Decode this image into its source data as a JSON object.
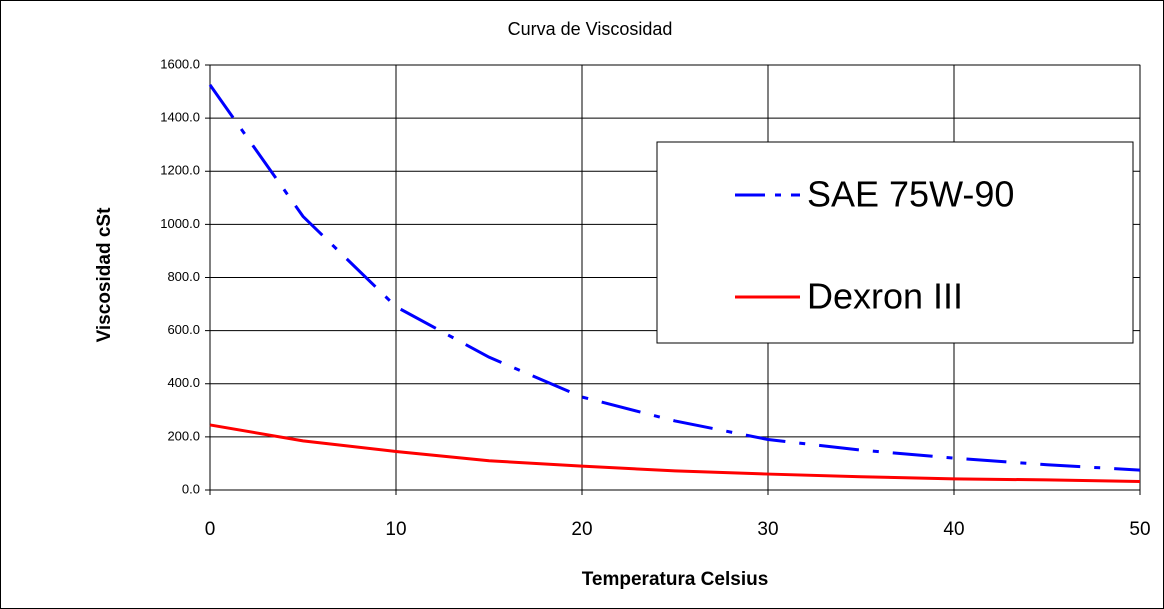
{
  "chart_data": {
    "type": "line",
    "title": "Curva de Viscosidad",
    "x_label": "Temperatura Celsius",
    "y_label": "Viscosidad cSt",
    "x": [
      0,
      5,
      10,
      15,
      20,
      25,
      30,
      35,
      40,
      45,
      50
    ],
    "series": [
      {
        "name": "SAE 75W-90",
        "color": "#0000ff",
        "dash": true,
        "values": [
          1525,
          1030,
          690,
          500,
          350,
          260,
          190,
          150,
          120,
          95,
          75
        ]
      },
      {
        "name": "Dexron III",
        "color": "#ff0000",
        "dash": false,
        "values": [
          245,
          185,
          145,
          110,
          90,
          72,
          60,
          50,
          42,
          38,
          32
        ]
      }
    ],
    "xlim": [
      0,
      50
    ],
    "xticks": [
      0,
      10,
      20,
      30,
      40,
      50
    ],
    "ylim": [
      0,
      1600
    ],
    "yticks": [
      {
        "value": 0,
        "label": "0.0"
      },
      {
        "value": 200,
        "label": "200.0"
      },
      {
        "value": 400,
        "label": "400.0"
      },
      {
        "value": 600,
        "label": "600.0"
      },
      {
        "value": 800,
        "label": "800.0"
      },
      {
        "value": 1000,
        "label": "1000.0"
      },
      {
        "value": 1200,
        "label": "1200.0"
      },
      {
        "value": 1400,
        "label": "1400.0"
      },
      {
        "value": 1600,
        "label": "1600.0"
      }
    ],
    "grid": true,
    "legend": "upper right"
  }
}
